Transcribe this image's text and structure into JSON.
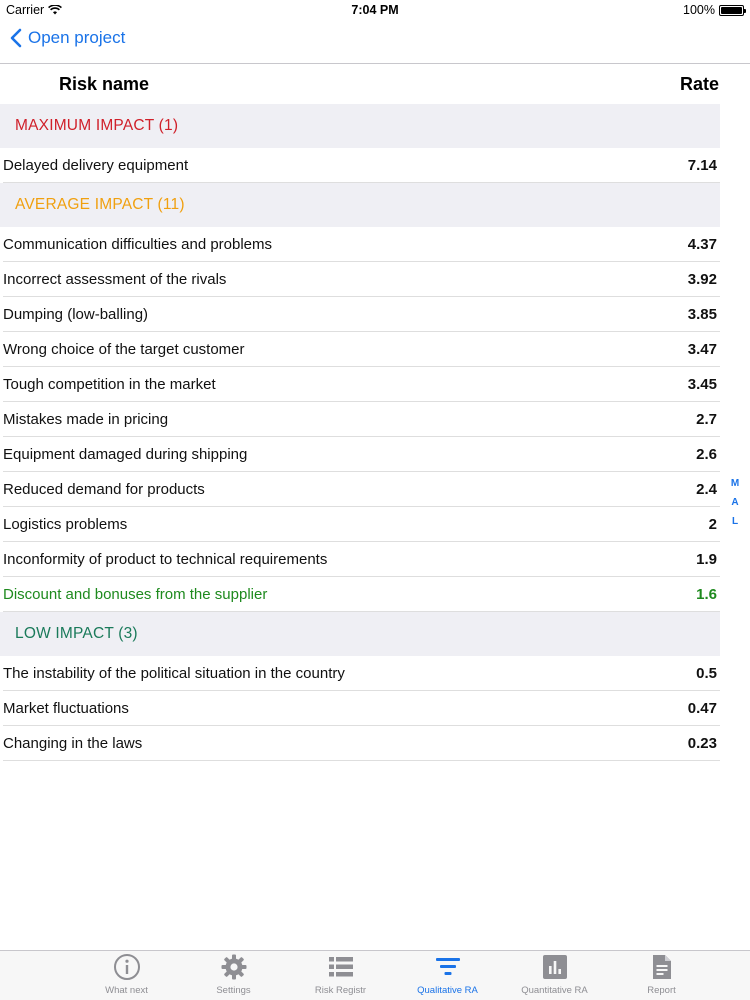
{
  "status_bar": {
    "carrier": "Carrier",
    "time": "7:04 PM",
    "battery": "100%"
  },
  "nav": {
    "back_label": "Open project"
  },
  "columns": {
    "name": "Risk name",
    "rate": "Rate"
  },
  "sections": [
    {
      "title": "MAXIMUM IMPACT (1)",
      "color": "#d0202a",
      "rows": [
        {
          "name": "Delayed delivery equipment",
          "rate": "7.14"
        }
      ]
    },
    {
      "title": "AVERAGE IMPACT (11)",
      "color": "#f0a010",
      "rows": [
        {
          "name": "Communication difficulties and problems",
          "rate": "4.37"
        },
        {
          "name": "Incorrect assessment of the rivals",
          "rate": "3.92"
        },
        {
          "name": "Dumping (low-balling)",
          "rate": "3.85"
        },
        {
          "name": "Wrong choice of the target customer",
          "rate": "3.47"
        },
        {
          "name": "Tough competition in the market",
          "rate": "3.45"
        },
        {
          "name": "Mistakes made in pricing",
          "rate": "2.7"
        },
        {
          "name": "Equipment damaged during shipping",
          "rate": "2.6"
        },
        {
          "name": "Reduced demand for products",
          "rate": "2.4"
        },
        {
          "name": "Logistics problems",
          "rate": "2"
        },
        {
          "name": "Inconformity of product to technical requirements",
          "rate": "1.9"
        },
        {
          "name": "Discount and bonuses from the supplier",
          "rate": "1.6",
          "highlight": "green"
        }
      ]
    },
    {
      "title": "LOW IMPACT (3)",
      "color": "#1a7a5a",
      "rows": [
        {
          "name": "The instability of the political situation in the country",
          "rate": "0.5"
        },
        {
          "name": "Market fluctuations",
          "rate": "0.47"
        },
        {
          "name": "Changing in the laws",
          "rate": "0.23"
        }
      ]
    }
  ],
  "index": [
    "M",
    "A",
    "L"
  ],
  "tabs": [
    {
      "label": "What next",
      "icon": "info-icon",
      "active": false
    },
    {
      "label": "Settings",
      "icon": "gear-icon",
      "active": false
    },
    {
      "label": "Risk Registr",
      "icon": "list-icon",
      "active": false
    },
    {
      "label": "Qualitative RA",
      "icon": "filter-icon",
      "active": true
    },
    {
      "label": "Quantitative RA",
      "icon": "bar-chart-icon",
      "active": false
    },
    {
      "label": "Report",
      "icon": "document-icon",
      "active": false
    }
  ]
}
